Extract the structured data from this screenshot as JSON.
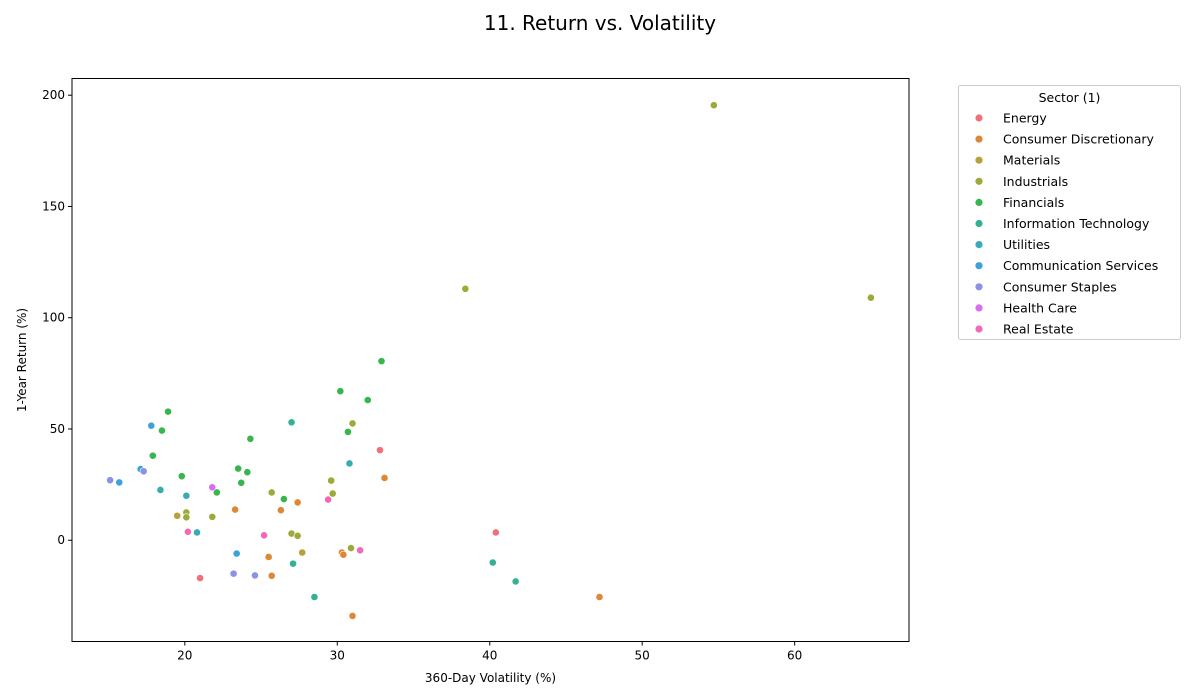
{
  "chart_data": {
    "type": "scatter",
    "title": "11. Return vs. Volatility",
    "xlabel": "360-Day Volatility (%)",
    "ylabel": "1-Year Return (%)",
    "xlim": [
      12.6,
      67.5
    ],
    "ylim": [
      -45.5,
      207.5
    ],
    "xticks": [
      20,
      30,
      40,
      50,
      60
    ],
    "yticks": [
      0,
      50,
      100,
      150,
      200
    ],
    "grid": false,
    "legend": {
      "title": "Sector (1)",
      "placement": "outside-right"
    },
    "series": [
      {
        "name": "Energy",
        "color": "#f0717a",
        "points": [
          [
            32.8,
            40.5
          ],
          [
            40.4,
            3.5
          ],
          [
            21.0,
            -17.0
          ]
        ]
      },
      {
        "name": "Consumer Discretionary",
        "color": "#dd8737",
        "points": [
          [
            33.1,
            28.0
          ],
          [
            27.4,
            17.0
          ],
          [
            26.3,
            13.5
          ],
          [
            23.3,
            13.8
          ],
          [
            25.5,
            -7.5
          ],
          [
            25.7,
            -16.0
          ],
          [
            30.3,
            -5.5
          ],
          [
            30.4,
            -6.5
          ],
          [
            31.0,
            -34.0
          ],
          [
            47.2,
            -25.5
          ]
        ]
      },
      {
        "name": "Materials",
        "color": "#b7a23a",
        "points": [
          [
            19.5,
            11.0
          ],
          [
            27.7,
            -5.5
          ]
        ]
      },
      {
        "name": "Industrials",
        "color": "#9fa937",
        "points": [
          [
            54.7,
            195.5
          ],
          [
            65.0,
            109.0
          ],
          [
            38.4,
            113.0
          ],
          [
            31.0,
            52.5
          ],
          [
            29.6,
            26.8
          ],
          [
            29.7,
            21.0
          ],
          [
            25.7,
            21.5
          ],
          [
            20.1,
            12.5
          ],
          [
            20.1,
            10.3
          ],
          [
            21.8,
            10.5
          ],
          [
            27.0,
            3.0
          ],
          [
            27.4,
            2.0
          ],
          [
            30.9,
            -3.5
          ]
        ]
      },
      {
        "name": "Financials",
        "color": "#38b64e",
        "points": [
          [
            32.9,
            80.5
          ],
          [
            30.2,
            67.0
          ],
          [
            32.0,
            63.0
          ],
          [
            18.9,
            57.8
          ],
          [
            18.5,
            49.3
          ],
          [
            30.7,
            48.7
          ],
          [
            24.3,
            45.6
          ],
          [
            17.9,
            38.0
          ],
          [
            23.5,
            32.2
          ],
          [
            24.1,
            30.6
          ],
          [
            19.8,
            28.8
          ],
          [
            23.7,
            25.8
          ],
          [
            22.1,
            21.5
          ],
          [
            26.5,
            18.5
          ]
        ]
      },
      {
        "name": "Information Technology",
        "color": "#36b094",
        "points": [
          [
            27.0,
            53.0
          ],
          [
            28.5,
            -25.5
          ],
          [
            27.1,
            -10.5
          ],
          [
            40.2,
            -10.0
          ],
          [
            41.7,
            -18.5
          ]
        ]
      },
      {
        "name": "Utilities",
        "color": "#37acb3",
        "points": [
          [
            30.8,
            34.5
          ],
          [
            18.4,
            22.6
          ],
          [
            20.1,
            20.0
          ],
          [
            20.8,
            3.5
          ]
        ]
      },
      {
        "name": "Communication Services",
        "color": "#3ba3d9",
        "points": [
          [
            17.8,
            51.5
          ],
          [
            17.1,
            32.0
          ],
          [
            15.7,
            26.0
          ],
          [
            23.4,
            -6.0
          ]
        ]
      },
      {
        "name": "Consumer Staples",
        "color": "#8b92e4",
        "points": [
          [
            15.1,
            27.0
          ],
          [
            17.3,
            31.0
          ],
          [
            23.2,
            -15.0
          ],
          [
            24.6,
            -15.8
          ]
        ]
      },
      {
        "name": "Health Care",
        "color": "#d96cf2",
        "points": [
          [
            21.8,
            23.8
          ]
        ]
      },
      {
        "name": "Real Estate",
        "color": "#f468b8",
        "points": [
          [
            29.4,
            18.3
          ],
          [
            20.2,
            3.8
          ],
          [
            25.2,
            2.2
          ],
          [
            31.5,
            -4.5
          ]
        ]
      }
    ]
  }
}
